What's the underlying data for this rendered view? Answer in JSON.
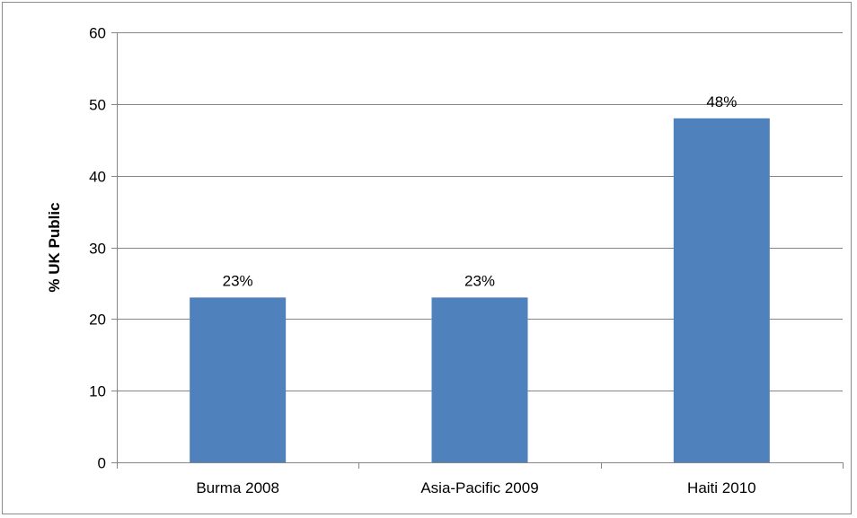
{
  "chart_data": {
    "type": "bar",
    "title": "",
    "xlabel": "",
    "ylabel": "% UK Public",
    "categories": [
      "Burma 2008",
      "Asia-Pacific 2009",
      "Haiti 2010"
    ],
    "values": [
      23,
      23,
      48
    ],
    "data_labels": [
      "23%",
      "23%",
      "48%"
    ],
    "ylim": [
      0,
      60
    ],
    "yticks": [
      0,
      10,
      20,
      30,
      40,
      50,
      60
    ],
    "ytick_labels": [
      "0",
      "10",
      "20",
      "30",
      "40",
      "50",
      "60"
    ],
    "grid": true,
    "legend": "none",
    "bar_color": "#4f81bd",
    "grid_color": "#868686"
  }
}
